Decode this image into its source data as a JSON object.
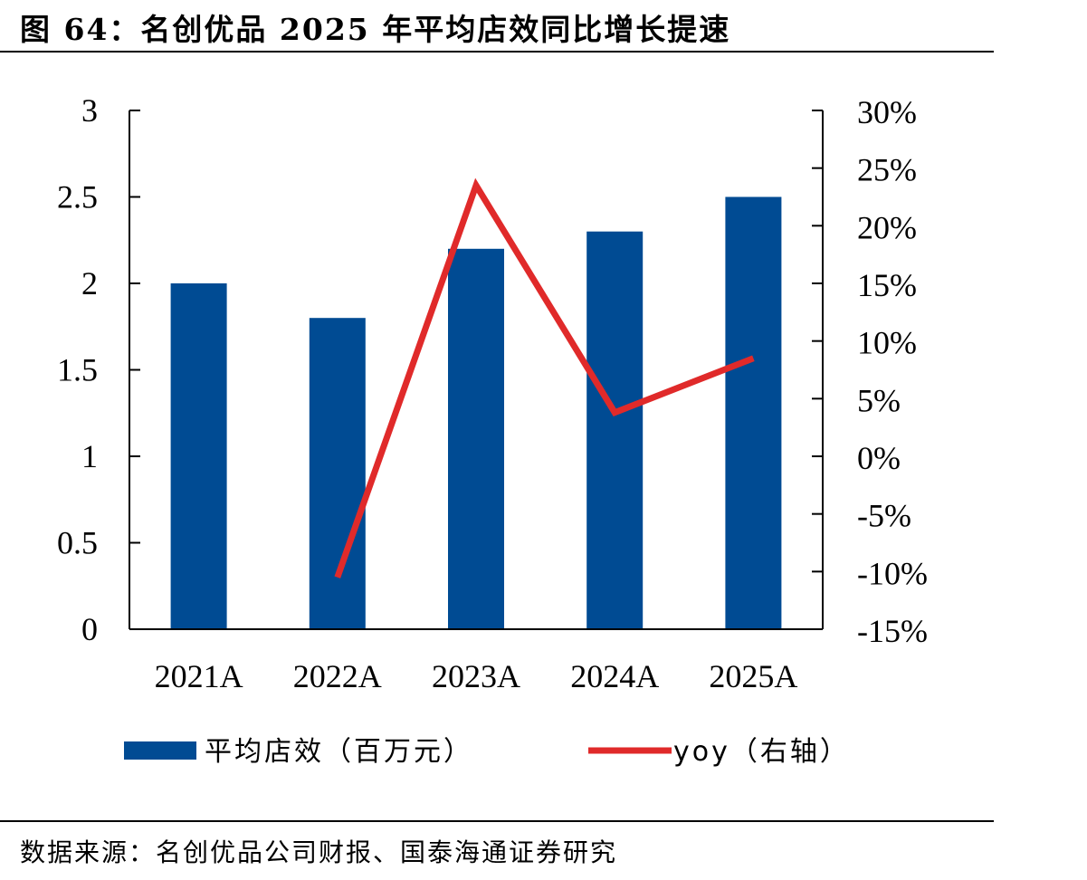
{
  "figure": {
    "title": "图 64：名创优品 2025 年平均店效同比增长提速",
    "source": "数据来源：名创优品公司财报、国泰海通证券研究"
  },
  "colors": {
    "bar": "#004b93",
    "line": "#e02a2a",
    "axis": "#000000"
  },
  "chart_data": {
    "type": "bar",
    "categories": [
      "2021A",
      "2022A",
      "2023A",
      "2024A",
      "2025A"
    ],
    "series": [
      {
        "name": "平均店效（百万元）",
        "type": "bar",
        "axis": "left",
        "values": [
          2.0,
          1.8,
          2.2,
          2.3,
          2.5
        ]
      },
      {
        "name": "yoy（右轴）",
        "type": "line",
        "axis": "right",
        "values": [
          null,
          -10.5,
          23.5,
          3.8,
          8.5
        ]
      }
    ],
    "y_left": {
      "range": [
        0,
        3
      ],
      "ticks": [
        0,
        0.5,
        1,
        1.5,
        2,
        2.5,
        3
      ],
      "tick_labels": [
        "0",
        "0.5",
        "1",
        "1.5",
        "2",
        "2.5",
        "3"
      ]
    },
    "y_right": {
      "range": [
        -15,
        30
      ],
      "ticks": [
        -15,
        -10,
        -5,
        0,
        5,
        10,
        15,
        20,
        25,
        30
      ],
      "tick_labels": [
        "-15%",
        "-10%",
        "-5%",
        "0%",
        "5%",
        "10%",
        "15%",
        "20%",
        "25%",
        "30%"
      ]
    },
    "grid": false,
    "legend_position": "bottom"
  }
}
